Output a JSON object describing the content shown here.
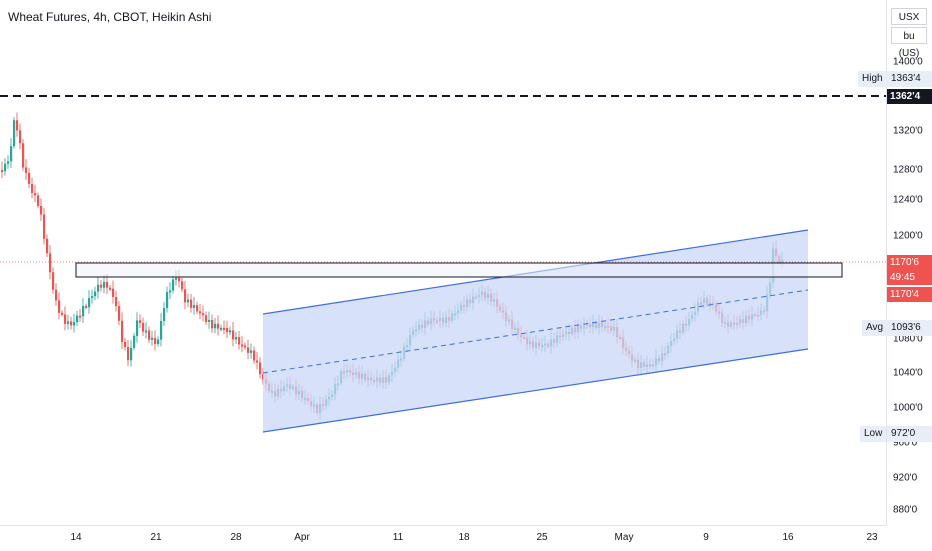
{
  "header": {
    "title": "Wheat Futures, 4h, CBOT, Heikin Ashi"
  },
  "scale": {
    "currency": "USX",
    "unit": "bu (US)"
  },
  "colors": {
    "up": "#26a69a",
    "down": "#ef5350",
    "channel": "#3d6ee0",
    "channel_fill": "#c9d7f8",
    "rect_fill": "#eef2fb"
  },
  "y_axis": {
    "ticks": [
      "1400'0",
      "1320'0",
      "1280'0",
      "1240'0",
      "1200'0",
      "1080'0",
      "1040'0",
      "1000'0",
      "960'0",
      "920'0",
      "880'0"
    ]
  },
  "x_axis": {
    "ticks": [
      "14",
      "21",
      "28",
      "Apr",
      "11",
      "18",
      "25",
      "May",
      "9",
      "16",
      "23"
    ]
  },
  "markers": {
    "high": {
      "label": "High",
      "value": "1363'4"
    },
    "dashed": {
      "value": "1362'4"
    },
    "last": {
      "value": "1170'6",
      "countdown": "49:45",
      "close": "1170'4"
    },
    "avg": {
      "label": "Avg",
      "value": "1093'6"
    },
    "low": {
      "label": "Low",
      "value": "972'0"
    }
  }
}
